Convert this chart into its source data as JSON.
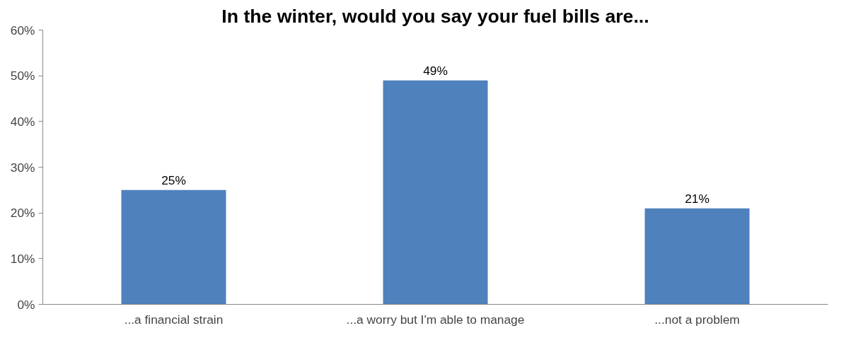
{
  "chart_data": {
    "type": "bar",
    "title": "In the winter, would you say your fuel bills are...",
    "categories": [
      "...a financial strain",
      "...a worry but I'm able to manage",
      "...not a problem"
    ],
    "values": [
      25,
      49,
      21
    ],
    "color": "#4f81bd",
    "value_labels": [
      "25%",
      "49%",
      "21%"
    ],
    "ylim": [
      0,
      60
    ],
    "yticks": [
      {
        "value": 0,
        "label": "0%"
      },
      {
        "value": 10,
        "label": "10%"
      },
      {
        "value": 20,
        "label": "20%"
      },
      {
        "value": 30,
        "label": "30%"
      },
      {
        "value": 40,
        "label": "40%"
      },
      {
        "value": 50,
        "label": "50%"
      },
      {
        "value": 60,
        "label": "60%"
      }
    ],
    "grid": false
  }
}
